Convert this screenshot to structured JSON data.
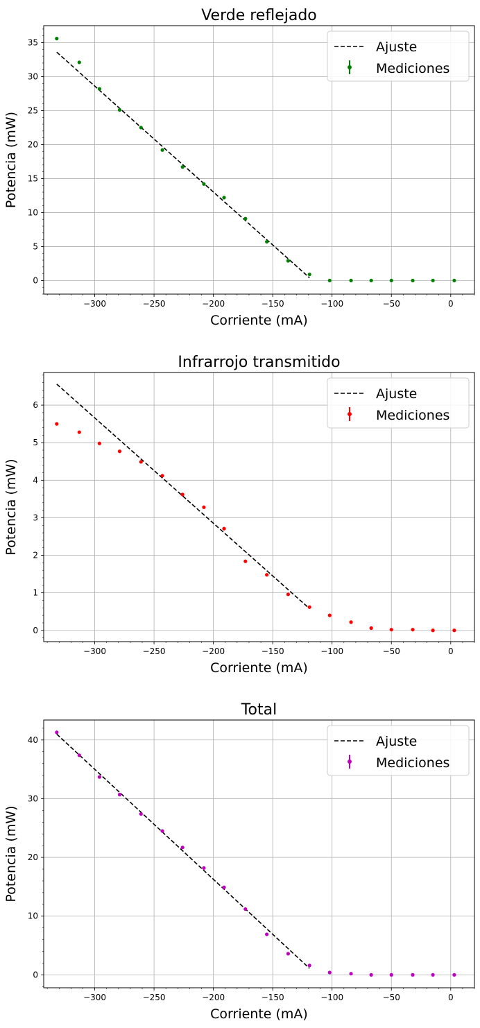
{
  "chart_data": [
    {
      "type": "scatter",
      "title": "Verde reflejado",
      "xlabel": "Corriente (mA)",
      "ylabel": "Potencia (mW)",
      "xlim": [
        -343,
        20
      ],
      "ylim": [
        -2,
        37.5
      ],
      "xticks": [
        -300,
        -250,
        -200,
        -150,
        -100,
        -50,
        0
      ],
      "xtick_labels": [
        "−300",
        "−250",
        "−200",
        "−150",
        "−100",
        "−50",
        "0"
      ],
      "yticks": [
        0,
        5,
        10,
        15,
        20,
        25,
        30,
        35
      ],
      "ytick_labels": [
        "0",
        "5",
        "10",
        "15",
        "20",
        "25",
        "30",
        "35"
      ],
      "grid": true,
      "legend": {
        "position": "top-right",
        "entries": [
          "Ajuste",
          "Mediciones"
        ]
      },
      "color": "#008000",
      "series": [
        {
          "name": "Mediciones",
          "x": [
            -332,
            -313,
            -296,
            -279,
            -261,
            -243,
            -226,
            -208,
            -191,
            -173,
            -155,
            -137,
            -119,
            -102,
            -84,
            -67,
            -50,
            -32,
            -15,
            3
          ],
          "y": [
            35.6,
            32.1,
            28.2,
            25.1,
            22.5,
            19.2,
            16.7,
            14.2,
            12.2,
            9.1,
            5.7,
            2.9,
            0.9,
            0.0,
            0.0,
            0.0,
            0.0,
            0.0,
            0.0,
            0.0
          ]
        },
        {
          "name": "Ajuste",
          "style": "dashed",
          "color": "#000000",
          "x": [
            -332,
            -119
          ],
          "y": [
            33.6,
            0.4
          ]
        }
      ]
    },
    {
      "type": "scatter",
      "title": "Infrarrojo transmitido",
      "xlabel": "Corriente (mA)",
      "ylabel": "Potencia (mW)",
      "xlim": [
        -343,
        20
      ],
      "ylim": [
        -0.3,
        6.87
      ],
      "xticks": [
        -300,
        -250,
        -200,
        -150,
        -100,
        -50,
        0
      ],
      "xtick_labels": [
        "−300",
        "−250",
        "−200",
        "−150",
        "−100",
        "−50",
        "0"
      ],
      "yticks": [
        0,
        1,
        2,
        3,
        4,
        5,
        6
      ],
      "ytick_labels": [
        "0",
        "1",
        "2",
        "3",
        "4",
        "5",
        "6"
      ],
      "grid": true,
      "legend": {
        "position": "top-right",
        "entries": [
          "Ajuste",
          "Mediciones"
        ]
      },
      "color": "#ff0000",
      "series": [
        {
          "name": "Mediciones",
          "x": [
            -332,
            -313,
            -296,
            -279,
            -261,
            -243,
            -226,
            -208,
            -191,
            -173,
            -155,
            -137,
            -119,
            -102,
            -84,
            -67,
            -50,
            -32,
            -15,
            3
          ],
          "y": [
            5.5,
            5.28,
            4.98,
            4.77,
            4.49,
            4.12,
            3.62,
            3.28,
            2.71,
            1.84,
            1.48,
            0.96,
            0.62,
            0.4,
            0.22,
            0.06,
            0.02,
            0.02,
            0.0,
            0.0
          ]
        },
        {
          "name": "Ajuste",
          "style": "dashed",
          "color": "#000000",
          "x": [
            -332,
            -119
          ],
          "y": [
            6.56,
            0.58
          ]
        }
      ]
    },
    {
      "type": "scatter",
      "title": "Total",
      "xlabel": "Corriente (mA)",
      "ylabel": "Potencia (mW)",
      "xlim": [
        -343,
        20
      ],
      "ylim": [
        -2.2,
        43.4
      ],
      "xticks": [
        -300,
        -250,
        -200,
        -150,
        -100,
        -50,
        0
      ],
      "xtick_labels": [
        "−300",
        "−250",
        "−200",
        "−150",
        "−100",
        "−50",
        "0"
      ],
      "yticks": [
        0,
        10,
        20,
        30,
        40
      ],
      "ytick_labels": [
        "0",
        "10",
        "20",
        "30",
        "40"
      ],
      "grid": true,
      "legend": {
        "position": "top-right",
        "entries": [
          "Ajuste",
          "Mediciones"
        ]
      },
      "color": "#bf00bf",
      "series": [
        {
          "name": "Mediciones",
          "x": [
            -332,
            -313,
            -296,
            -279,
            -261,
            -243,
            -226,
            -208,
            -191,
            -173,
            -155,
            -137,
            -119,
            -102,
            -84,
            -67,
            -50,
            -32,
            -15,
            3
          ],
          "y": [
            41.3,
            37.4,
            33.7,
            30.7,
            27.4,
            24.5,
            21.7,
            18.2,
            14.9,
            11.2,
            6.9,
            3.6,
            1.6,
            0.4,
            0.2,
            0.0,
            0.0,
            0.0,
            0.0,
            0.0
          ]
        },
        {
          "name": "Ajuste",
          "style": "dashed",
          "color": "#000000",
          "x": [
            -332,
            -119
          ],
          "y": [
            41.0,
            1.1
          ]
        }
      ]
    }
  ]
}
